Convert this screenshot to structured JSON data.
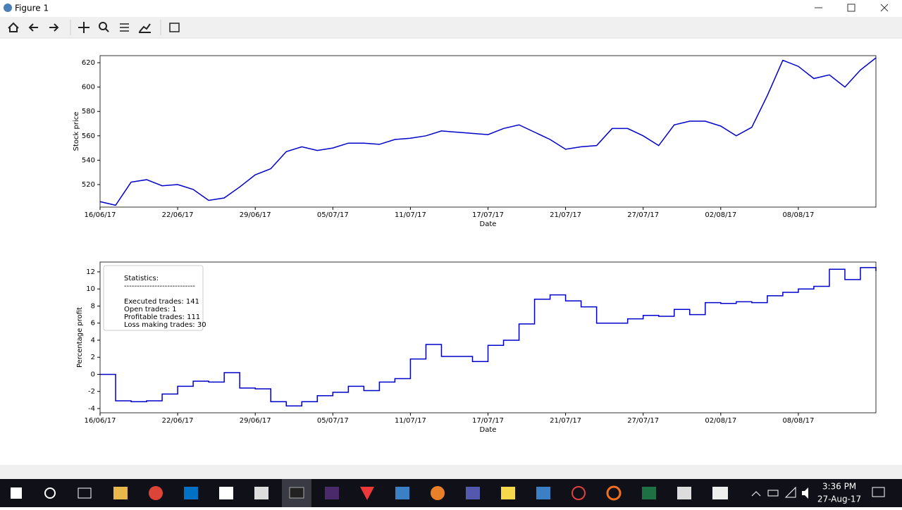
{
  "window": {
    "title": "Figure 1"
  },
  "taskbar": {
    "time": "3:36 PM",
    "date": "27-Aug-17"
  },
  "chart_data": [
    {
      "type": "line",
      "ylabel": "Stock price",
      "xlabel": "Date",
      "x": [
        0,
        20,
        40,
        60,
        80,
        100,
        120,
        140,
        160,
        180,
        200,
        220,
        240,
        260,
        280,
        300,
        320,
        340,
        360,
        380,
        400,
        420,
        440,
        460,
        480,
        500,
        520,
        540,
        560,
        580,
        600,
        620,
        640,
        660,
        680,
        700,
        720,
        740,
        760,
        780,
        800,
        820,
        840,
        860,
        880,
        900,
        920,
        940,
        960,
        980,
        1000
      ],
      "series": [
        {
          "color": "#0000cc",
          "values": [
            506,
            503,
            522,
            524,
            519,
            520,
            516,
            507,
            509,
            518,
            528,
            533,
            547,
            551,
            548,
            550,
            554,
            554,
            553,
            557,
            558,
            560,
            564,
            563,
            562,
            561,
            566,
            569,
            563,
            557,
            549,
            551,
            552,
            566,
            566,
            560,
            552,
            569,
            572,
            572,
            568,
            560,
            567,
            593,
            622,
            617,
            607,
            610,
            600,
            614,
            624
          ]
        }
      ],
      "xlim": [
        0,
        1000
      ],
      "xticks": [
        {
          "value": 0,
          "label": "16/06/17"
        },
        {
          "value": 100,
          "label": "22/06/17"
        },
        {
          "value": 200,
          "label": "29/06/17"
        },
        {
          "value": 300,
          "label": "05/07/17"
        },
        {
          "value": 400,
          "label": "11/07/17"
        },
        {
          "value": 500,
          "label": "17/07/17"
        },
        {
          "value": 600,
          "label": "21/07/17"
        },
        {
          "value": 700,
          "label": "27/07/17"
        },
        {
          "value": 800,
          "label": "02/08/17"
        },
        {
          "value": 900,
          "label": "08/08/17"
        }
      ],
      "ylim": [
        501.5,
        625.8
      ],
      "yticks": [
        520,
        540,
        560,
        580,
        600,
        620
      ]
    },
    {
      "type": "step",
      "ylabel": "Percentage profit",
      "xlabel": "Date",
      "x": [
        0,
        20,
        40,
        60,
        80,
        100,
        120,
        140,
        160,
        180,
        200,
        220,
        240,
        260,
        280,
        300,
        320,
        340,
        360,
        380,
        400,
        420,
        440,
        460,
        480,
        500,
        520,
        540,
        560,
        580,
        600,
        620,
        640,
        660,
        680,
        700,
        720,
        740,
        760,
        780,
        800,
        820,
        840,
        860,
        880,
        900,
        920,
        940,
        960,
        980,
        1000
      ],
      "series": [
        {
          "color": "#0000cc",
          "values": [
            0,
            -3.1,
            -3.2,
            -3.1,
            -2.3,
            -1.4,
            -0.8,
            -0.9,
            0.2,
            -1.6,
            -1.7,
            -3.2,
            -3.7,
            -3.2,
            -2.5,
            -2.1,
            -1.4,
            -1.9,
            -0.9,
            -0.5,
            1.8,
            3.5,
            2.1,
            2.1,
            1.5,
            3.4,
            4.0,
            5.9,
            8.8,
            9.3,
            8.6,
            7.9,
            6.0,
            6.0,
            6.5,
            6.9,
            6.8,
            7.6,
            7.0,
            8.4,
            8.3,
            8.5,
            8.4,
            9.2,
            9.6,
            10.0,
            10.3,
            12.3,
            11.1,
            12.5,
            12.1
          ]
        }
      ],
      "xlim": [
        0,
        1000
      ],
      "xticks": [
        {
          "value": 0,
          "label": "16/06/17"
        },
        {
          "value": 100,
          "label": "22/06/17"
        },
        {
          "value": 200,
          "label": "29/06/17"
        },
        {
          "value": 300,
          "label": "05/07/17"
        },
        {
          "value": 400,
          "label": "11/07/17"
        },
        {
          "value": 500,
          "label": "17/07/17"
        },
        {
          "value": 600,
          "label": "21/07/17"
        },
        {
          "value": 700,
          "label": "27/07/17"
        },
        {
          "value": 800,
          "label": "02/08/17"
        },
        {
          "value": 900,
          "label": "08/08/17"
        }
      ],
      "ylim": [
        -4.5,
        13.15
      ],
      "yticks": [
        -4,
        -2,
        0,
        2,
        4,
        6,
        8,
        10,
        12
      ],
      "annotation": [
        "Statistics:",
        "----------------------------",
        "",
        "Executed trades: 141",
        "Open trades: 1",
        "Profitable trades: 111",
        "Loss making trades: 30"
      ]
    }
  ]
}
